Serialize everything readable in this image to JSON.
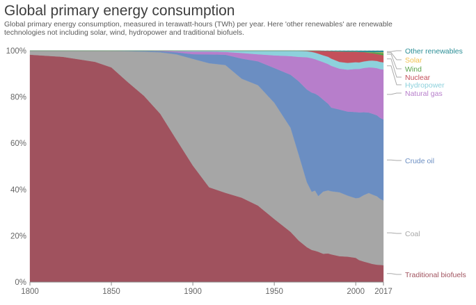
{
  "title": "Global primary energy consumption",
  "subtitle": "Global primary energy consumption, measured in terawatt-hours (TWh) per year. Here 'other renewables' are renewable technologies not including solar, wind, hydropower and traditional biofuels.",
  "chart_data": {
    "type": "area",
    "stacked": "percent",
    "x": [
      1800,
      1820,
      1840,
      1850,
      1860,
      1870,
      1880,
      1890,
      1900,
      1910,
      1920,
      1930,
      1940,
      1950,
      1960,
      1965,
      1970,
      1973,
      1975,
      1977,
      1980,
      1983,
      1985,
      1990,
      1995,
      2000,
      2002,
      2005,
      2008,
      2010,
      2013,
      2015,
      2017
    ],
    "xticks": [
      "1800",
      "1850",
      "1900",
      "1950",
      "2000",
      "2017"
    ],
    "yticks": [
      "0%",
      "20%",
      "40%",
      "60%",
      "80%",
      "100%"
    ],
    "ylim": [
      0,
      100
    ],
    "series": [
      {
        "name": "Traditional biofuels",
        "color": "#a0525e",
        "values": [
          98.3,
          97.4,
          95.2,
          92.8,
          86.5,
          80.5,
          72.7,
          61.5,
          50.4,
          41.0,
          38.6,
          36.5,
          32.4,
          27.0,
          21.5,
          17.5,
          14.5,
          13.3,
          13.0,
          12.5,
          11.7,
          11.9,
          11.6,
          11.1,
          10.9,
          10.4,
          9.5,
          8.8,
          8.3,
          7.9,
          7.5,
          7.4,
          7.3
        ]
      },
      {
        "name": "Coal",
        "color": "#a6a6a6",
        "values": [
          1.7,
          2.6,
          4.8,
          7.1,
          13.3,
          19.1,
          26.5,
          36.9,
          46.1,
          53.6,
          55.2,
          51.4,
          51.0,
          49.8,
          44.5,
          36.2,
          27.0,
          24.0,
          25.0,
          23.0,
          25.7,
          26.2,
          26.4,
          27.4,
          26.2,
          25.6,
          26.8,
          28.6,
          30.2,
          30.1,
          29.6,
          28.4,
          28.0
        ]
      },
      {
        "name": "Crude oil",
        "color": "#6b8ec2",
        "values": [
          0.0,
          0.0,
          0.0,
          0.1,
          0.2,
          0.3,
          0.5,
          0.9,
          2.0,
          3.8,
          4.5,
          8.7,
          10.1,
          14.9,
          22.7,
          31.0,
          38.5,
          41.0,
          40.2,
          41.5,
          38.0,
          36.0,
          35.0,
          35.5,
          36.0,
          37.0,
          36.8,
          35.6,
          34.8,
          35.0,
          35.0,
          34.8,
          35.0
        ]
      },
      {
        "name": "Natural gas",
        "color": "#b77ecb",
        "values": [
          0.0,
          0.0,
          0.0,
          0.0,
          0.0,
          0.1,
          0.2,
          0.5,
          1.1,
          1.2,
          1.2,
          2.4,
          3.0,
          5.4,
          8.0,
          10.3,
          13.4,
          14.2,
          14.3,
          14.5,
          15.5,
          16.5,
          17.5,
          17.5,
          18.0,
          18.5,
          18.7,
          19.0,
          19.5,
          20.0,
          20.4,
          21.0,
          21.6
        ]
      },
      {
        "name": "Hydropower",
        "color": "#8dd1dc",
        "values": [
          0.0,
          0.0,
          0.0,
          0.0,
          0.0,
          0.0,
          0.0,
          0.2,
          0.4,
          0.4,
          0.5,
          1.0,
          1.5,
          2.0,
          2.3,
          2.5,
          2.5,
          2.6,
          2.7,
          2.8,
          2.8,
          3.0,
          3.0,
          2.9,
          2.9,
          2.9,
          2.8,
          2.8,
          2.9,
          3.0,
          3.1,
          3.1,
          3.1
        ]
      },
      {
        "name": "Nuclear",
        "color": "#c4505b",
        "values": [
          0,
          0,
          0,
          0,
          0,
          0,
          0,
          0,
          0,
          0,
          0,
          0,
          0,
          0,
          0,
          0.1,
          0.2,
          0.5,
          0.8,
          1.2,
          1.8,
          2.4,
          3.1,
          4.5,
          4.8,
          4.5,
          4.5,
          4.0,
          3.4,
          3.2,
          3.0,
          3.1,
          3.0
        ]
      },
      {
        "name": "Wind",
        "color": "#59a34c",
        "values": [
          0,
          0,
          0,
          0,
          0,
          0,
          0,
          0,
          0,
          0,
          0,
          0,
          0,
          0,
          0,
          0,
          0,
          0,
          0,
          0,
          0,
          0,
          0,
          0,
          0.01,
          0.03,
          0.05,
          0.1,
          0.3,
          0.4,
          0.6,
          0.8,
          1.0
        ]
      },
      {
        "name": "Solar",
        "color": "#f2c14e",
        "values": [
          0,
          0,
          0,
          0,
          0,
          0,
          0,
          0,
          0,
          0,
          0,
          0,
          0,
          0,
          0,
          0,
          0,
          0,
          0,
          0,
          0,
          0,
          0,
          0,
          0,
          0,
          0,
          0.01,
          0.02,
          0.04,
          0.1,
          0.2,
          0.3
        ]
      },
      {
        "name": "Other renewables",
        "color": "#2b8e96",
        "values": [
          0,
          0,
          0,
          0,
          0,
          0,
          0,
          0,
          0,
          0,
          0,
          0,
          0,
          0,
          0,
          0,
          0,
          0,
          0,
          0,
          0.1,
          0.1,
          0.2,
          0.3,
          0.4,
          0.4,
          0.5,
          0.5,
          0.6,
          0.6,
          0.7,
          0.7,
          0.7
        ]
      }
    ]
  }
}
